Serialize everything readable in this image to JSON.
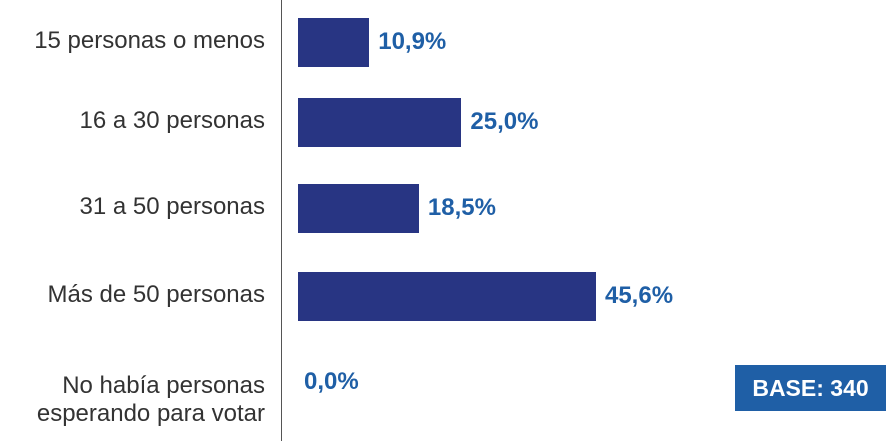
{
  "chart_data": {
    "type": "bar",
    "orientation": "horizontal",
    "categories": [
      "15 personas o menos",
      "16 a 30 personas",
      "31 a 50 personas",
      "Más de 50 personas",
      "No había personas\nesperando para votar"
    ],
    "values": [
      10.9,
      25.0,
      18.5,
      45.6,
      0.0
    ],
    "value_labels": [
      "10,9%",
      "25,0%",
      "18,5%",
      "45,6%",
      "0,0%"
    ],
    "title": "",
    "xlabel": "",
    "ylabel": "",
    "xlim": [
      0,
      45.6
    ],
    "grid": false,
    "legend": "none",
    "colors": {
      "bar": "#283583",
      "value_label": "#1f5fa6",
      "category_label": "#333333",
      "axis": "#555555"
    }
  },
  "base_badge": {
    "text": "BASE: 340",
    "background": "#1f5fa6",
    "text_color": "#ffffff"
  }
}
